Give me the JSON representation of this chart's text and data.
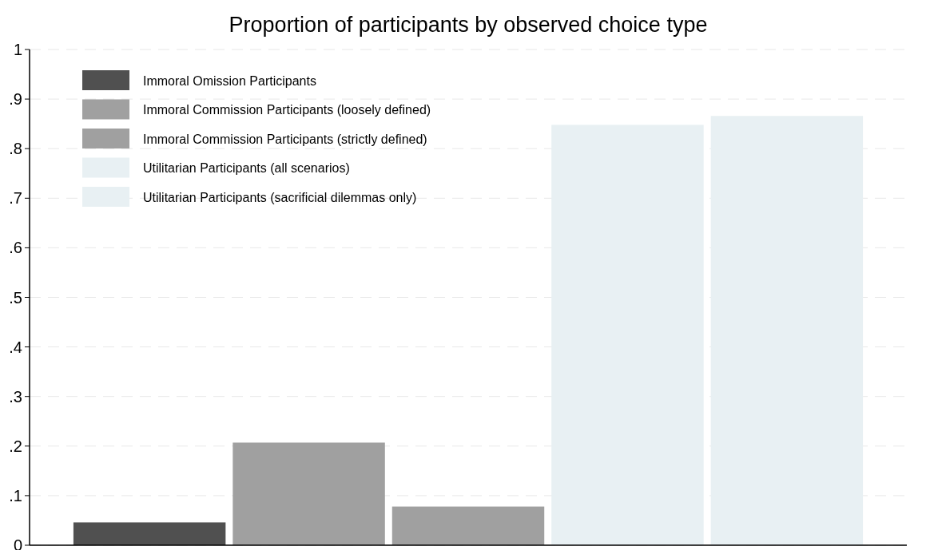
{
  "chart_data": {
    "type": "bar",
    "title": "Proportion of participants by observed choice type",
    "categories": [
      null
    ],
    "series": [
      {
        "name": "Immoral Omission Participants",
        "color": "#505050",
        "values": [
          0.046
        ]
      },
      {
        "name": "Immoral Commission Participants (loosely defined)",
        "color": "#a0a0a0",
        "values": [
          0.207
        ]
      },
      {
        "name": "Immoral Commission Participants (strictly defined)",
        "color": "#a0a0a0",
        "values": [
          0.078
        ]
      },
      {
        "name": "Utilitarian Participants (all scenarios)",
        "color": "#e8f0f3",
        "values": [
          0.848
        ]
      },
      {
        "name": "Utilitarian Participants (sacrificial dilemmas only)",
        "color": "#e8f0f3",
        "values": [
          0.866
        ]
      }
    ],
    "ylim": [
      0,
      1
    ],
    "yticks": [
      0,
      {
        "value": 0.1,
        "label": ".1"
      },
      {
        "value": 0.2,
        "label": ".2"
      },
      {
        "value": 0.3,
        "label": ".3"
      },
      {
        "value": 0.4,
        "label": ".4"
      },
      {
        "value": 0.5,
        "label": ".5"
      },
      {
        "value": 0.6,
        "label": ".6"
      },
      {
        "value": 0.7,
        "label": ".7"
      },
      {
        "value": 0.8,
        "label": ".8"
      },
      {
        "value": 0.9,
        "label": ".9"
      },
      1
    ],
    "grid": "y",
    "legend": "top left",
    "tick_labels": "y"
  }
}
